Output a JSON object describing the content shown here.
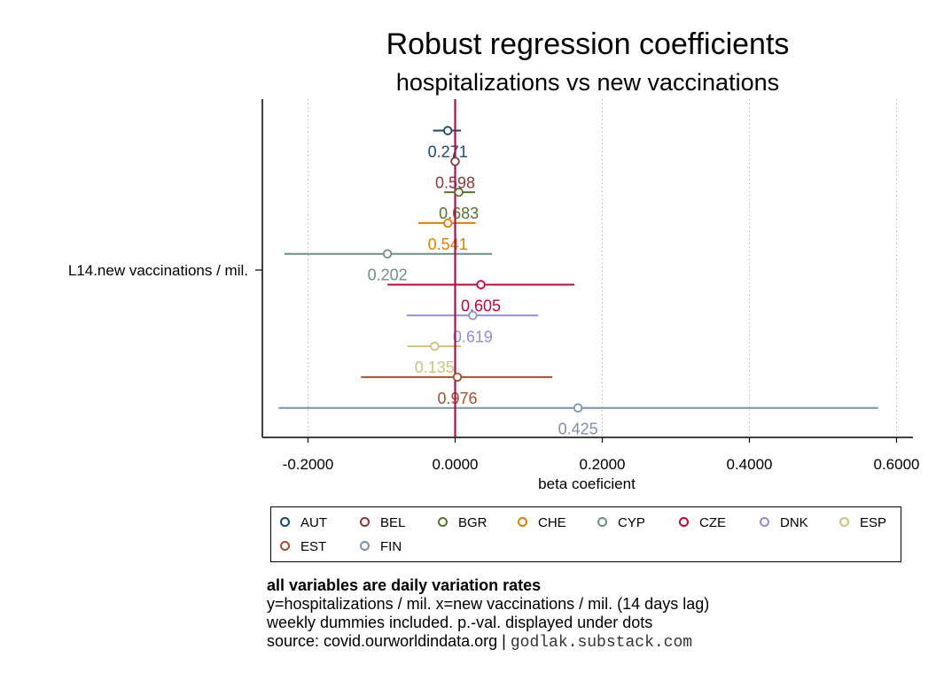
{
  "chart_data": {
    "type": "scatter",
    "title": "Robust regression coefficients",
    "subtitle": "hospitalizations vs new vaccinations",
    "xlabel": "beta coeficient",
    "ylabel_tick": "L14.new vaccinations / mil.",
    "xlim": [
      -0.26,
      0.61
    ],
    "xticks": [
      -0.2,
      0.0,
      0.2,
      0.4,
      0.6
    ],
    "xtick_labels": [
      "-0.2000",
      "0.0000",
      "0.2000",
      "0.4000",
      "0.6000"
    ],
    "grid": "vertical dotted",
    "reference_line": 0.0,
    "legend_position": "bottom",
    "series": [
      {
        "name": "AUT",
        "color": "#1a476f",
        "estimate": -0.01,
        "ci": [
          -0.03,
          0.008
        ],
        "pvalue": "0.271"
      },
      {
        "name": "BEL",
        "color": "#90353b",
        "estimate": 0.0,
        "ci": [
          -0.002,
          0.002
        ],
        "pvalue": "0.598"
      },
      {
        "name": "BGR",
        "color": "#55752f",
        "estimate": 0.005,
        "ci": [
          -0.015,
          0.027
        ],
        "pvalue": "0.683"
      },
      {
        "name": "CHE",
        "color": "#e37e00",
        "estimate": -0.01,
        "ci": [
          -0.05,
          0.028
        ],
        "pvalue": "0.541"
      },
      {
        "name": "CYP",
        "color": "#6e8e84",
        "estimate": -0.092,
        "ci": [
          -0.232,
          0.05
        ],
        "pvalue": "0.202"
      },
      {
        "name": "CZE",
        "color": "#c10534",
        "estimate": 0.035,
        "ci": [
          -0.092,
          0.162
        ],
        "pvalue": "0.605"
      },
      {
        "name": "DNK",
        "color": "#938dd2",
        "estimate": 0.024,
        "ci": [
          -0.066,
          0.113
        ],
        "pvalue": "0.619"
      },
      {
        "name": "ESP",
        "color": "#cac27e",
        "estimate": -0.028,
        "ci": [
          -0.065,
          0.008
        ],
        "pvalue": "0.135"
      },
      {
        "name": "EST",
        "color": "#a0522d",
        "estimate": 0.003,
        "ci": [
          -0.128,
          0.132
        ],
        "pvalue": "0.976"
      },
      {
        "name": "FIN",
        "color": "#7b92a8",
        "estimate": 0.167,
        "ci": [
          -0.24,
          0.575
        ],
        "pvalue": "0.425"
      }
    ]
  },
  "notes": {
    "line1": "all variables are daily variation rates",
    "line2": "y=hospitalizations / mil. x=new vaccinations / mil. (14 days lag)",
    "line3": "weekly dummies included. p.-val. displayed under dots",
    "line4_prefix": "source: covid.ourworldindata.org |",
    "line4_site": "godlak.substack.com"
  }
}
